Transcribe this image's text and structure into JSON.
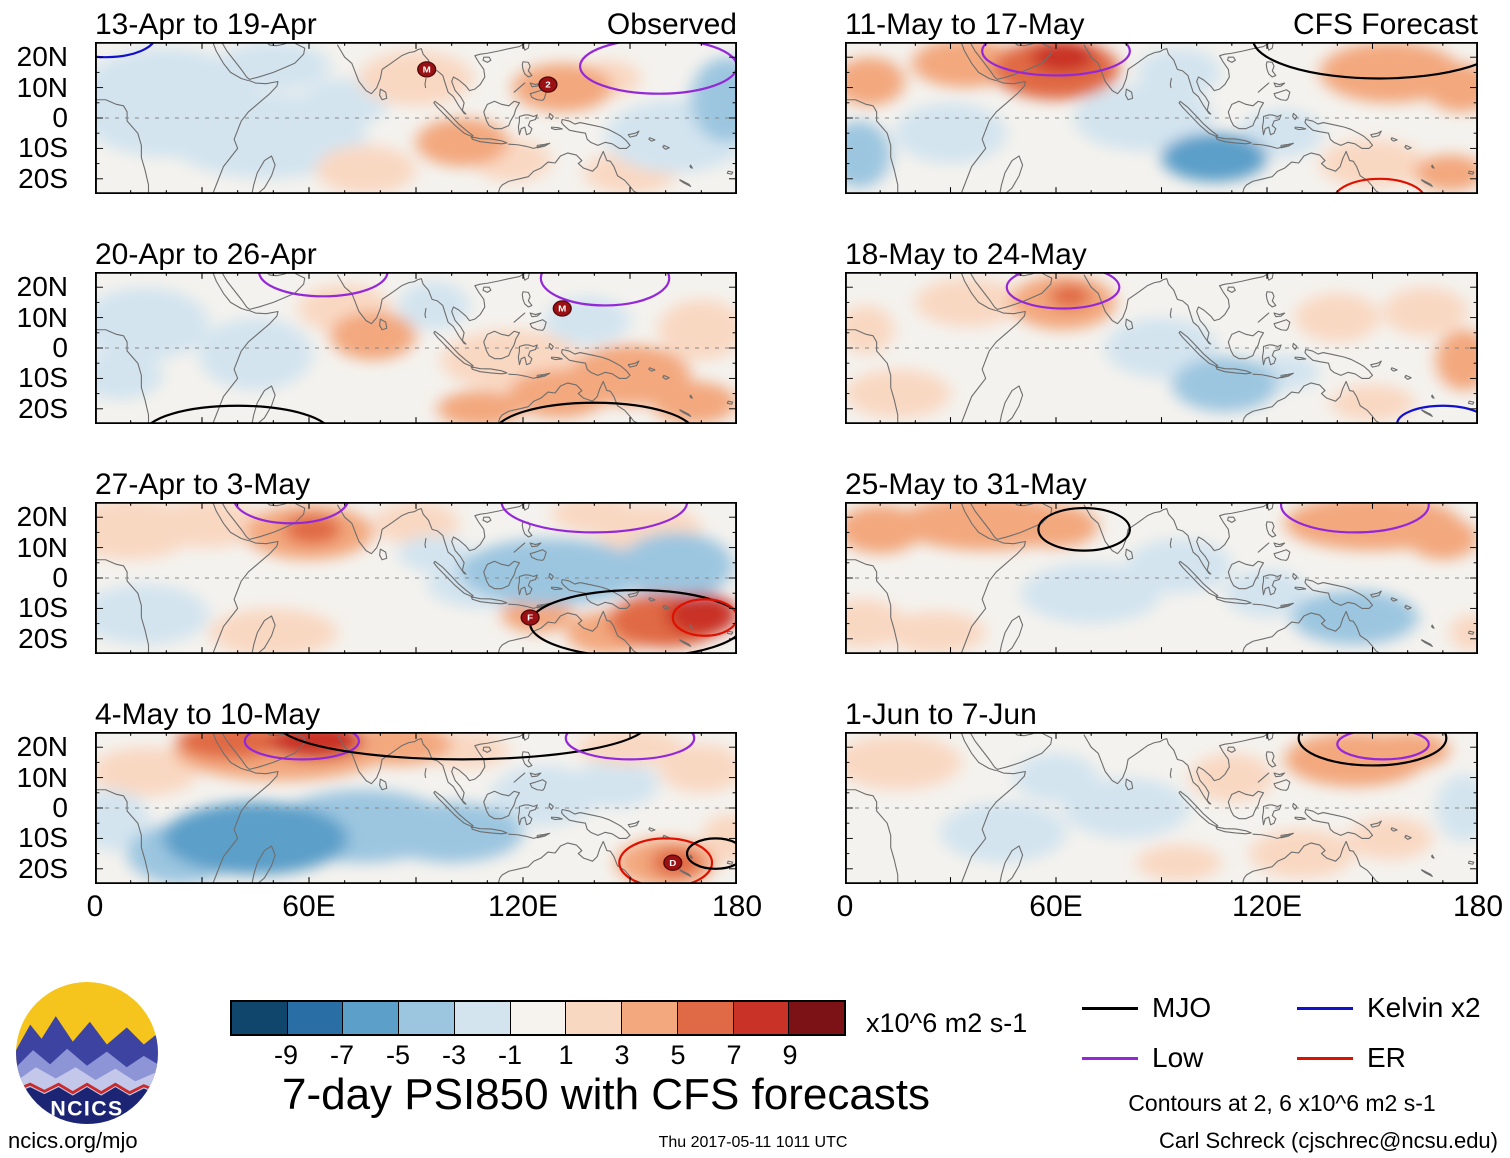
{
  "chart_data": {
    "type": "heatmap",
    "title": "7-day PSI850 with CFS forecasts",
    "units_label": "x10^6 m2 s-1",
    "contour_note": "Contours at 2, 6 x10^6 m2 s-1",
    "x_ticks": [
      "0",
      "60E",
      "120E",
      "180"
    ],
    "y_ticks": [
      "20N",
      "10N",
      "0",
      "10S",
      "20S"
    ],
    "lon_range": [
      0,
      180
    ],
    "lat_range": [
      -25,
      25
    ],
    "columns": [
      {
        "label": "Observed"
      },
      {
        "label": "CFS Forecast"
      }
    ],
    "colorbar": {
      "tick_labels": [
        "-9",
        "-7",
        "-5",
        "-3",
        "-1",
        "1",
        "3",
        "5",
        "7",
        "9"
      ],
      "colors": [
        "#10466b",
        "#2a6ea6",
        "#5c9fc9",
        "#9cc6e0",
        "#d3e4ef",
        "#f6f3ee",
        "#f9d8c2",
        "#f3a87e",
        "#e06a45",
        "#c93327",
        "#7d1216"
      ],
      "base_color": "#f4f2ee"
    },
    "legend": [
      {
        "label": "MJO",
        "color": "#000000"
      },
      {
        "label": "Low",
        "color": "#9428d8"
      },
      {
        "label": "Kelvin x2",
        "color": "#1111cc"
      },
      {
        "label": "ER",
        "color": "#dd1100"
      }
    ],
    "contour_colors": {
      "MJO": "#000000",
      "Low": "#9428d8",
      "Kelvin": "#1111cc",
      "ER": "#dd1100"
    },
    "marker_color": "#9b1013",
    "blob_format": [
      "lon",
      "lat",
      "rx_deg",
      "ry_deg",
      "value"
    ],
    "contour_format": [
      "type",
      "lon",
      "lat",
      "rx_deg",
      "ry_deg"
    ],
    "panels": [
      {
        "title": "13-Apr to 19-Apr",
        "column": 0,
        "blobs": [
          [
            20,
            5,
            26,
            18,
            -2
          ],
          [
            48,
            -6,
            28,
            14,
            -2
          ],
          [
            50,
            17,
            16,
            8,
            -2
          ],
          [
            70,
            5,
            12,
            8,
            -2
          ],
          [
            76,
            -17,
            14,
            8,
            2
          ],
          [
            90,
            13,
            16,
            9,
            2
          ],
          [
            103,
            -8,
            13,
            8,
            4
          ],
          [
            117,
            -14,
            11,
            7,
            2
          ],
          [
            131,
            10,
            14,
            8,
            3
          ],
          [
            144,
            13,
            9,
            6,
            2
          ],
          [
            150,
            -18,
            13,
            7,
            2
          ],
          [
            163,
            -6,
            20,
            12,
            -2
          ],
          [
            177,
            6,
            10,
            14,
            -4
          ]
        ],
        "contours": [
          [
            "Low",
            158,
            17,
            22,
            9
          ],
          [
            "Kelvin",
            3,
            27,
            14,
            7
          ]
        ],
        "markers": [
          {
            "label": "M",
            "lon": 93,
            "lat": 16
          },
          {
            "label": "2",
            "lon": 127,
            "lat": 11
          }
        ]
      },
      {
        "title": "20-Apr to 26-Apr",
        "column": 0,
        "blobs": [
          [
            14,
            8,
            18,
            12,
            -2
          ],
          [
            7,
            -9,
            12,
            8,
            -2
          ],
          [
            45,
            -2,
            16,
            12,
            -2
          ],
          [
            70,
            13,
            13,
            8,
            2
          ],
          [
            78,
            4,
            12,
            8,
            4
          ],
          [
            95,
            14,
            10,
            8,
            -2
          ],
          [
            108,
            -20,
            12,
            6,
            3
          ],
          [
            117,
            -4,
            20,
            10,
            2
          ],
          [
            130,
            -15,
            14,
            8,
            4
          ],
          [
            138,
            9,
            12,
            8,
            -2
          ],
          [
            150,
            -9,
            17,
            10,
            3
          ],
          [
            168,
            -18,
            12,
            7,
            4
          ],
          [
            170,
            6,
            12,
            10,
            2
          ]
        ],
        "contours": [
          [
            "Low",
            64,
            25,
            18,
            8
          ],
          [
            "Low",
            143,
            23,
            18,
            9
          ],
          [
            "MJO",
            40,
            -28,
            26,
            9
          ],
          [
            "MJO",
            140,
            -28,
            28,
            10
          ]
        ],
        "markers": [
          {
            "label": "M",
            "lon": 131,
            "lat": 13
          }
        ]
      },
      {
        "title": "27-Apr to 3-May",
        "column": 0,
        "blobs": [
          [
            10,
            16,
            18,
            10,
            2
          ],
          [
            32,
            18,
            15,
            8,
            2
          ],
          [
            50,
            -18,
            18,
            8,
            1
          ],
          [
            60,
            15,
            18,
            9,
            4
          ],
          [
            61,
            16,
            8,
            5,
            6
          ],
          [
            90,
            18,
            12,
            7,
            2
          ],
          [
            95,
            8,
            10,
            6,
            -2
          ],
          [
            108,
            -2,
            15,
            8,
            -2
          ],
          [
            14,
            -12,
            18,
            10,
            -2
          ],
          [
            124,
            -12,
            10,
            6,
            3
          ],
          [
            128,
            2,
            26,
            11,
            -4
          ],
          [
            140,
            21,
            12,
            6,
            2
          ],
          [
            144,
            -18,
            12,
            7,
            4
          ],
          [
            155,
            16,
            15,
            8,
            2
          ],
          [
            160,
            -14,
            16,
            9,
            6
          ],
          [
            163,
            4,
            16,
            11,
            -4
          ],
          [
            170,
            -12,
            10,
            7,
            7
          ]
        ],
        "contours": [
          [
            "Low",
            55,
            26,
            16,
            8
          ],
          [
            "Low",
            140,
            25,
            26,
            10
          ],
          [
            "MJO",
            152,
            -15,
            30,
            11
          ],
          [
            "ER",
            171,
            -13,
            9,
            6
          ]
        ],
        "markers": [
          {
            "label": "F",
            "lon": 122,
            "lat": -13
          }
        ]
      },
      {
        "title": "4-May to 10-May",
        "column": 0,
        "blobs": [
          [
            14,
            12,
            15,
            8,
            2
          ],
          [
            5,
            -4,
            10,
            10,
            -2
          ],
          [
            24,
            -15,
            15,
            10,
            -4
          ],
          [
            38,
            22,
            15,
            6,
            5
          ],
          [
            45,
            -10,
            26,
            12,
            -6
          ],
          [
            52,
            19,
            30,
            10,
            4
          ],
          [
            62,
            22,
            13,
            6,
            7
          ],
          [
            75,
            -6,
            25,
            12,
            -4
          ],
          [
            85,
            21,
            15,
            7,
            4
          ],
          [
            100,
            -8,
            20,
            10,
            -4
          ],
          [
            104,
            19,
            12,
            6,
            2
          ],
          [
            126,
            4,
            15,
            10,
            -2
          ],
          [
            146,
            8,
            12,
            8,
            -2
          ],
          [
            150,
            20,
            15,
            6,
            2
          ],
          [
            160,
            -18,
            14,
            8,
            4
          ],
          [
            163,
            -18,
            7,
            5,
            6
          ],
          [
            170,
            13,
            12,
            8,
            1
          ],
          [
            178,
            -10,
            8,
            8,
            2
          ]
        ],
        "contours": [
          [
            "Low",
            58,
            22,
            16,
            6
          ],
          [
            "MJO",
            103,
            28,
            52,
            12
          ],
          [
            "Low",
            150,
            23,
            18,
            7
          ],
          [
            "ER",
            160,
            -18,
            13,
            8
          ],
          [
            "MJO",
            174,
            -15,
            8,
            5
          ]
        ],
        "markers": [
          {
            "label": "D",
            "lon": 162,
            "lat": -18
          }
        ]
      },
      {
        "title": "11-May to 17-May",
        "column": 1,
        "blobs": [
          [
            7,
            12,
            10,
            8,
            3
          ],
          [
            4,
            -12,
            9,
            11,
            -4
          ],
          [
            30,
            -5,
            16,
            10,
            -2
          ],
          [
            34,
            18,
            15,
            8,
            3
          ],
          [
            60,
            16,
            18,
            10,
            5
          ],
          [
            62,
            20,
            9,
            5,
            7
          ],
          [
            85,
            0,
            20,
            11,
            -2
          ],
          [
            95,
            15,
            12,
            8,
            -2
          ],
          [
            105,
            -13,
            15,
            8,
            -6
          ],
          [
            124,
            -5,
            12,
            8,
            -2
          ],
          [
            150,
            -15,
            15,
            8,
            2
          ],
          [
            155,
            15,
            20,
            10,
            4
          ],
          [
            172,
            -18,
            10,
            6,
            3
          ],
          [
            175,
            10,
            10,
            8,
            4
          ]
        ],
        "contours": [
          [
            "Low",
            60,
            22,
            21,
            8
          ],
          [
            "MJO",
            152,
            26,
            36,
            13
          ],
          [
            "ER",
            152,
            -27,
            13,
            7
          ]
        ],
        "markers": []
      },
      {
        "title": "18-May to 24-May",
        "column": 1,
        "blobs": [
          [
            6,
            6,
            8,
            8,
            2
          ],
          [
            15,
            -15,
            15,
            8,
            2
          ],
          [
            35,
            15,
            15,
            8,
            2
          ],
          [
            62,
            15,
            15,
            9,
            4
          ],
          [
            64,
            17,
            6,
            4,
            6
          ],
          [
            90,
            0,
            16,
            10,
            -2
          ],
          [
            108,
            -12,
            15,
            9,
            -4
          ],
          [
            125,
            -8,
            10,
            6,
            -2
          ],
          [
            140,
            10,
            12,
            8,
            1
          ],
          [
            150,
            -18,
            12,
            6,
            1
          ],
          [
            165,
            12,
            12,
            8,
            2
          ],
          [
            176,
            -4,
            8,
            10,
            3
          ]
        ],
        "contours": [
          [
            "Low",
            62,
            20,
            16,
            7
          ],
          [
            "Kelvin",
            170,
            -25,
            13,
            6
          ]
        ],
        "markers": []
      },
      {
        "title": "25-May to 31-May",
        "column": 1,
        "blobs": [
          [
            10,
            16,
            12,
            8,
            3
          ],
          [
            5,
            -15,
            12,
            8,
            2
          ],
          [
            26,
            -18,
            14,
            7,
            2
          ],
          [
            40,
            18,
            25,
            9,
            3
          ],
          [
            60,
            17,
            12,
            7,
            4
          ],
          [
            70,
            -5,
            20,
            10,
            -2
          ],
          [
            95,
            4,
            15,
            9,
            -2
          ],
          [
            120,
            -5,
            12,
            8,
            -2
          ],
          [
            145,
            -13,
            18,
            9,
            -4
          ],
          [
            150,
            18,
            25,
            9,
            3
          ],
          [
            170,
            13,
            10,
            7,
            4
          ],
          [
            178,
            -18,
            6,
            6,
            2
          ]
        ],
        "contours": [
          [
            "MJO",
            68,
            16,
            13,
            7
          ],
          [
            "Low",
            145,
            24,
            21,
            9
          ]
        ],
        "markers": []
      },
      {
        "title": "1-Jun to 7-Jun",
        "column": 1,
        "blobs": [
          [
            15,
            15,
            18,
            9,
            2
          ],
          [
            45,
            -8,
            18,
            10,
            -2
          ],
          [
            60,
            10,
            12,
            8,
            -2
          ],
          [
            80,
            0,
            18,
            10,
            -2
          ],
          [
            95,
            -18,
            12,
            6,
            1
          ],
          [
            110,
            10,
            12,
            8,
            1
          ],
          [
            130,
            -15,
            15,
            8,
            2
          ],
          [
            145,
            16,
            20,
            9,
            3
          ],
          [
            155,
            -10,
            12,
            7,
            2
          ],
          [
            160,
            19,
            12,
            6,
            4
          ],
          [
            176,
            0,
            8,
            11,
            -2
          ]
        ],
        "contours": [
          [
            "MJO",
            150,
            23,
            21,
            9
          ],
          [
            "Low",
            153,
            21,
            13,
            5
          ]
        ],
        "markers": []
      }
    ]
  },
  "logo": {
    "text": "NCICS"
  },
  "footer": {
    "left": "ncics.org/mjo",
    "center": "Thu 2017-05-11 1011 UTC",
    "right": "Carl Schreck (cjschrec@ncsu.edu)"
  }
}
